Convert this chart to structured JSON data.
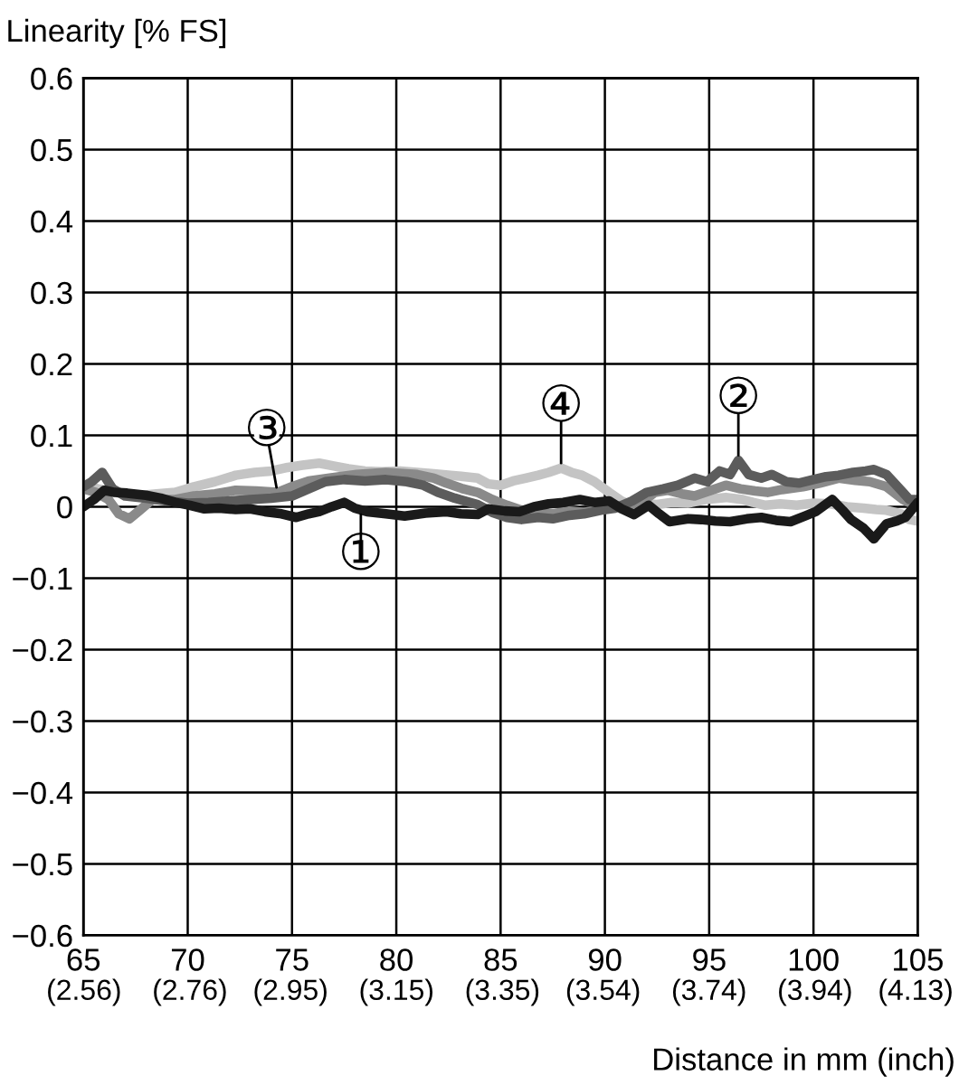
{
  "chart_data": {
    "type": "line",
    "ylabel": "Linearity [% FS]",
    "xlabel": "Distance in mm (inch)",
    "xlim": [
      65,
      105
    ],
    "xticks": [
      65,
      70,
      75,
      80,
      85,
      90,
      95,
      100,
      105
    ],
    "x2lim": [
      2.559,
      4.134
    ],
    "x2ticks": [
      {
        "value": 2.56,
        "label": "(2.56)"
      },
      {
        "value": 2.76,
        "label": "(2.76)"
      },
      {
        "value": 2.95,
        "label": "(2.95)"
      },
      {
        "value": 3.15,
        "label": "(3.15)"
      },
      {
        "value": 3.35,
        "label": "(3.35)"
      },
      {
        "value": 3.54,
        "label": "(3.54)"
      },
      {
        "value": 3.74,
        "label": "(3.74)"
      },
      {
        "value": 3.94,
        "label": "(3.94)"
      },
      {
        "value": 4.13,
        "label": "(4.13)"
      }
    ],
    "ylim": [
      -0.6,
      0.6
    ],
    "yticks": [
      {
        "value": -0.6,
        "label": "−0.6"
      },
      {
        "value": -0.5,
        "label": "−0.5"
      },
      {
        "value": -0.4,
        "label": "−0.4"
      },
      {
        "value": -0.3,
        "label": "−0.3"
      },
      {
        "value": -0.2,
        "label": "−0.2"
      },
      {
        "value": -0.1,
        "label": "−0.1"
      },
      0,
      0.1,
      0.2,
      0.3,
      0.4,
      0.5,
      0.6
    ],
    "grid": true,
    "line_style": "solid",
    "series": [
      {
        "color": "#c4c4c4",
        "x": [
          65.0,
          65.7,
          66.5,
          67.5,
          68.5,
          69.4,
          70.3,
          71.3,
          72.3,
          73.2,
          74.0,
          74.8,
          75.5,
          76.3,
          77.0,
          77.7,
          78.5,
          79.3,
          80.2,
          81.0,
          81.8,
          82.6,
          83.3,
          83.9,
          84.4,
          85.0,
          85.6,
          86.2,
          86.8,
          87.3,
          87.9,
          88.4,
          88.9,
          89.5,
          90.2,
          90.8,
          91.4,
          92.0,
          92.5,
          93.2,
          94.0,
          94.8,
          95.8,
          96.6,
          97.1,
          97.7,
          98.4,
          99.2,
          100.0,
          100.8,
          101.6,
          102.4,
          103.0,
          103.5,
          104.2,
          104.6,
          105.0
        ],
        "values": [
          0.03,
          0.025,
          0.02,
          0.015,
          0.018,
          0.02,
          0.028,
          0.035,
          0.044,
          0.048,
          0.05,
          0.055,
          0.058,
          0.061,
          0.057,
          0.053,
          0.05,
          0.049,
          0.05,
          0.048,
          0.046,
          0.044,
          0.042,
          0.04,
          0.032,
          0.03,
          0.036,
          0.04,
          0.044,
          0.048,
          0.054,
          0.048,
          0.044,
          0.035,
          0.02,
          0.008,
          0.0,
          0.004,
          0.003,
          0.006,
          0.005,
          0.01,
          0.013,
          0.01,
          0.006,
          0.002,
          0.004,
          0.002,
          0.005,
          0.004,
          0.0,
          -0.002,
          -0.004,
          -0.005,
          -0.01,
          -0.018,
          -0.02
        ]
      },
      {
        "color": "#8a8a8a",
        "x": [
          65.0,
          65.6,
          66.2,
          66.7,
          67.2,
          67.7,
          68.3,
          69.4,
          70.3,
          71.3,
          72.3,
          73.3,
          74.3,
          75.0,
          75.8,
          76.8,
          78.1,
          79.5,
          80.5,
          81.0,
          81.8,
          82.4,
          83.2,
          83.9,
          84.6,
          85.3,
          86.0,
          86.8,
          87.5,
          88.3,
          89.0,
          89.8,
          90.5,
          91.2,
          91.7,
          92.4,
          93.0,
          93.7,
          94.3,
          95.0,
          95.8,
          96.5,
          97.2,
          97.8,
          98.5,
          99.5,
          100.3,
          101.2,
          102.0,
          102.7,
          103.5,
          104.3,
          105.0
        ],
        "values": [
          0.025,
          0.02,
          0.01,
          -0.01,
          -0.017,
          -0.005,
          0.01,
          0.01,
          0.015,
          0.018,
          0.023,
          0.022,
          0.02,
          0.028,
          0.036,
          0.04,
          0.045,
          0.048,
          0.046,
          0.045,
          0.04,
          0.033,
          0.025,
          0.02,
          0.01,
          0.002,
          -0.005,
          -0.008,
          -0.01,
          -0.006,
          -0.008,
          -0.004,
          0.0,
          0.003,
          0.005,
          0.02,
          0.023,
          0.018,
          0.015,
          0.022,
          0.03,
          0.025,
          0.022,
          0.02,
          0.024,
          0.028,
          0.033,
          0.04,
          0.037,
          0.035,
          0.028,
          0.01,
          0.0
        ]
      },
      {
        "color": "#5c5c5c",
        "x": [
          65.0,
          65.4,
          65.9,
          66.4,
          67.0,
          68.0,
          69.0,
          70.0,
          71.0,
          72.0,
          73.0,
          74.0,
          75.0,
          75.8,
          76.6,
          77.5,
          78.5,
          79.5,
          80.5,
          81.3,
          82.0,
          82.8,
          83.9,
          84.6,
          85.3,
          86.0,
          86.8,
          87.5,
          88.3,
          89.0,
          89.8,
          90.5,
          91.3,
          92.0,
          92.8,
          93.5,
          94.3,
          94.9,
          95.5,
          96.0,
          96.4,
          96.9,
          97.5,
          98.0,
          98.7,
          99.3,
          100.0,
          100.6,
          101.2,
          101.9,
          102.5,
          102.9,
          103.5,
          104.2,
          104.6,
          105.0
        ],
        "values": [
          0.028,
          0.035,
          0.048,
          0.025,
          0.015,
          0.012,
          0.008,
          0.005,
          0.006,
          0.008,
          0.01,
          0.012,
          0.015,
          0.025,
          0.035,
          0.038,
          0.036,
          0.038,
          0.035,
          0.03,
          0.02,
          0.012,
          0.003,
          -0.008,
          -0.015,
          -0.018,
          -0.015,
          -0.017,
          -0.012,
          -0.01,
          -0.005,
          -0.002,
          0.008,
          0.02,
          0.025,
          0.03,
          0.04,
          0.035,
          0.05,
          0.045,
          0.065,
          0.045,
          0.04,
          0.045,
          0.035,
          0.033,
          0.038,
          0.042,
          0.044,
          0.048,
          0.05,
          0.052,
          0.045,
          0.023,
          0.01,
          0.01
        ]
      },
      {
        "color": "#1a1a1a",
        "x": [
          65.0,
          65.5,
          66.0,
          66.5,
          67.1,
          68.0,
          68.7,
          69.4,
          70.1,
          70.8,
          71.5,
          72.3,
          73.0,
          73.7,
          74.5,
          75.2,
          75.8,
          76.3,
          76.9,
          77.5,
          78.0,
          78.6,
          79.5,
          80.4,
          81.4,
          82.4,
          83.1,
          83.9,
          84.4,
          85.2,
          85.9,
          86.6,
          87.3,
          88.0,
          88.8,
          89.5,
          90.2,
          90.8,
          91.4,
          92.1,
          92.6,
          93.1,
          94.0,
          94.6,
          95.3,
          96.0,
          96.8,
          97.5,
          98.2,
          98.9,
          99.6,
          100.1,
          100.9,
          101.4,
          101.8,
          102.4,
          102.9,
          103.5,
          104.0,
          104.4,
          105.0
        ],
        "values": [
          0.0,
          0.01,
          0.023,
          0.02,
          0.019,
          0.016,
          0.012,
          0.006,
          0.002,
          -0.003,
          -0.002,
          -0.004,
          -0.003,
          -0.007,
          -0.01,
          -0.015,
          -0.01,
          -0.007,
          0.0,
          0.006,
          -0.002,
          -0.007,
          -0.01,
          -0.013,
          -0.009,
          -0.007,
          -0.01,
          -0.011,
          -0.003,
          -0.006,
          -0.007,
          0.0,
          0.004,
          0.006,
          0.01,
          0.006,
          0.008,
          -0.003,
          -0.011,
          0.002,
          -0.01,
          -0.021,
          -0.017,
          -0.018,
          -0.02,
          -0.021,
          -0.017,
          -0.015,
          -0.019,
          -0.021,
          -0.013,
          -0.007,
          0.01,
          -0.005,
          -0.018,
          -0.03,
          -0.045,
          -0.024,
          -0.02,
          -0.015,
          0.006
        ]
      }
    ],
    "annotations": [
      {
        "text": "③",
        "x": 74.3,
        "y": 0.02
      },
      {
        "text": "①",
        "x": 78.3,
        "y": -0.004
      },
      {
        "text": "④",
        "x": 87.9,
        "y": 0.054
      },
      {
        "text": "②",
        "x": 96.4,
        "y": 0.065
      }
    ]
  }
}
